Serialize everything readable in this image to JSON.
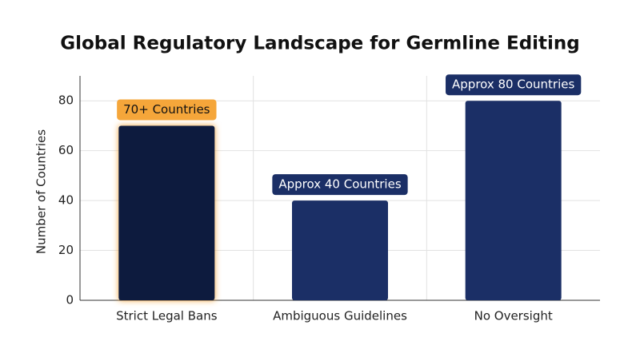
{
  "chart_data": {
    "type": "bar",
    "title": "Global Regulatory Landscape for Germline Editing",
    "y_label": "Number of Countries",
    "categories": [
      "Strict Legal Bans",
      "Ambiguous Guidelines",
      "No Oversight"
    ],
    "values": [
      70,
      40,
      80
    ],
    "value_labels": [
      "70+ Countries",
      "Approx 40 Countries",
      "Approx 80 Countries"
    ],
    "colors": [
      "#0d1b3e",
      "#1b2f66",
      "#1b2f66"
    ],
    "label_colors": [
      "#f5a63a",
      "#1b2f66",
      "#1b2f66"
    ],
    "label_text_colors": [
      "#111111",
      "#ffffff",
      "#ffffff"
    ],
    "highlight": [
      true,
      false,
      false
    ],
    "ylim": [
      0,
      90
    ],
    "yticks": [
      0,
      20,
      40,
      60,
      80
    ],
    "grid": true
  }
}
